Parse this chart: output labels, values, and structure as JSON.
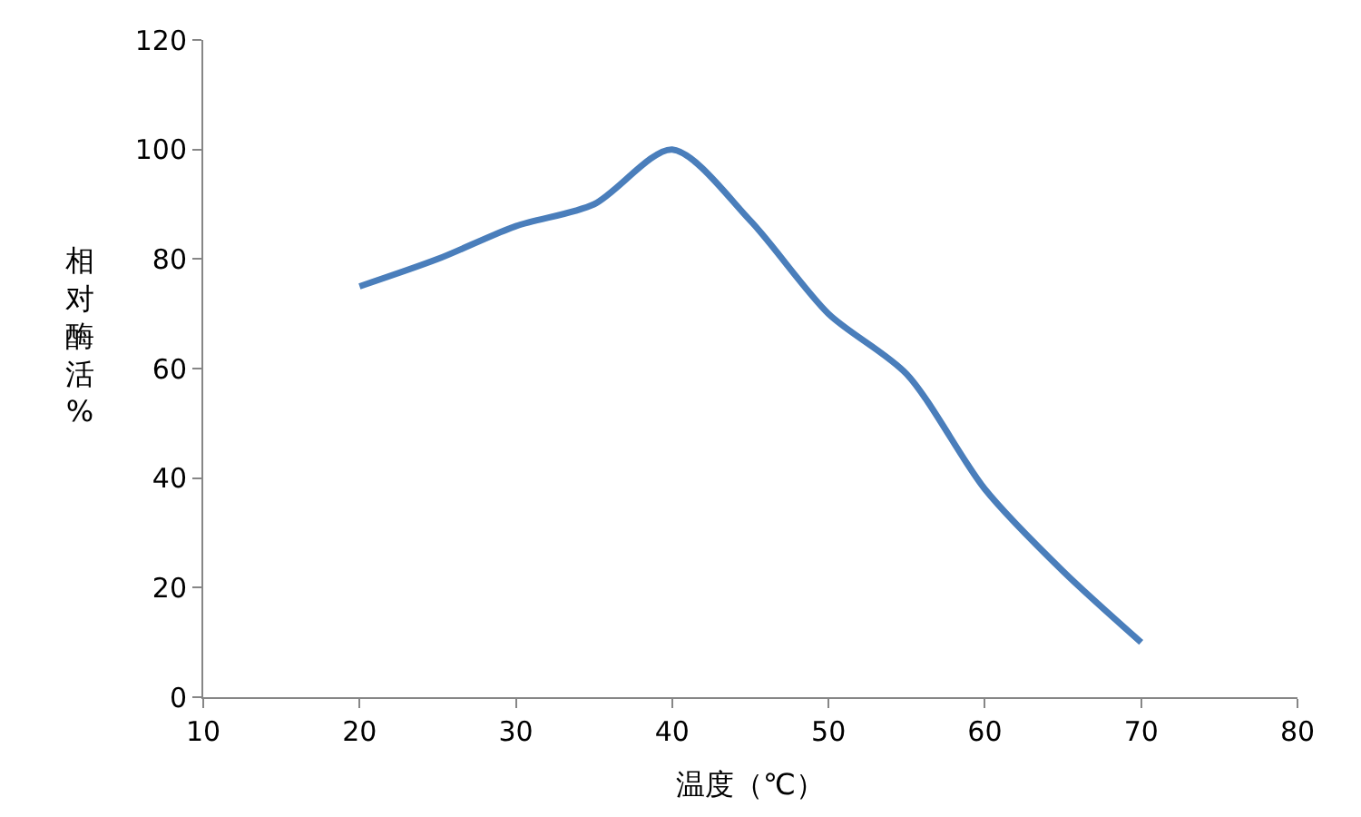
{
  "chart_data": {
    "type": "line",
    "xlabel": "温度（℃）",
    "ylabel": "相对酶活%",
    "x": [
      20,
      25,
      30,
      35,
      40,
      45,
      50,
      55,
      60,
      65,
      70
    ],
    "series": [
      {
        "color": "#4a7ebb",
        "values": [
          75,
          80,
          86,
          90,
          100,
          87,
          70,
          59,
          38,
          23,
          10
        ]
      }
    ],
    "xlim": [
      10,
      80
    ],
    "xticks": [
      10,
      20,
      30,
      40,
      50,
      60,
      70,
      80
    ],
    "ylim": [
      0,
      120
    ],
    "yticks": [
      0,
      20,
      40,
      60,
      80,
      100,
      120
    ],
    "marker": "none",
    "line_style": "solid"
  }
}
